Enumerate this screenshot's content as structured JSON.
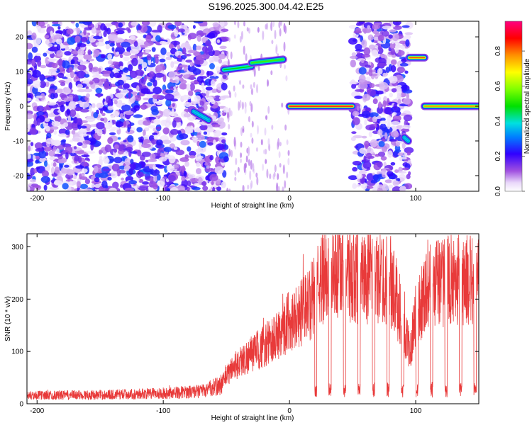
{
  "title": "S196.2025.300.04.42.E25",
  "chart_data": [
    {
      "type": "heatmap",
      "xlabel": "Height of straight line (km)",
      "ylabel": "Frequency (Hz)",
      "colorbar_label": "Normalized spectral amplitude",
      "xlim": [
        -208,
        150
      ],
      "ylim": [
        -24.5,
        24.5
      ],
      "x_ticks": [
        -200,
        -100,
        0,
        100
      ],
      "x_tick_labels": [
        "-200",
        "-100",
        "0",
        "100"
      ],
      "y_ticks": [
        -20,
        -10,
        0,
        10,
        20
      ],
      "y_tick_labels": [
        "-20",
        "-10",
        "0",
        "10",
        "20"
      ],
      "colorbar_ticks": [
        0.0,
        0.2,
        0.4,
        0.6,
        0.8
      ],
      "colorbar_tick_labels": [
        "0.0",
        "0.2",
        "0.4",
        "0.6",
        "0.8"
      ],
      "colorbar_range": [
        0.0,
        0.97
      ],
      "noise_regions": [
        [
          -208,
          -50
        ],
        [
          50,
          95
        ]
      ],
      "tracks": [
        {
          "x_start": -52,
          "x_end": -30,
          "freq_start": 10.5,
          "freq_end": 11.5,
          "amplitude": 0.5
        },
        {
          "x_start": -30,
          "x_end": -5,
          "freq_start": 12.5,
          "freq_end": 13.5,
          "amplitude": 0.55
        },
        {
          "x_start": -76,
          "x_end": -64,
          "freq_start": -1.5,
          "freq_end": -4.0,
          "amplitude": 0.4
        },
        {
          "x_start": 0,
          "x_end": 50,
          "freq_start": 0.0,
          "freq_end": 0.0,
          "amplitude": 0.92
        },
        {
          "x_start": 91,
          "x_end": 94,
          "freq_start": -9.0,
          "freq_end": -10.0,
          "amplitude": 0.4
        },
        {
          "x_start": 95,
          "x_end": 107,
          "freq_start": 14.0,
          "freq_end": 14.0,
          "amplitude": 0.85
        },
        {
          "x_start": 107,
          "x_end": 150,
          "freq_start": 0.0,
          "freq_end": 0.0,
          "amplitude": 0.8
        }
      ]
    },
    {
      "type": "line",
      "xlabel": "Height of straight line (km)",
      "ylabel": "SNR (10 * v/v)",
      "xlim": [
        -208,
        150
      ],
      "ylim": [
        0,
        325
      ],
      "x_ticks": [
        -200,
        -100,
        0,
        100
      ],
      "x_tick_labels": [
        "-200",
        "-100",
        "0",
        "100"
      ],
      "y_ticks": [
        0,
        100,
        200,
        300
      ],
      "y_tick_labels": [
        "0",
        "100",
        "200",
        "300"
      ],
      "series": [
        {
          "name": "SNR",
          "color": "#e83a3a",
          "profile_x": [
            -208,
            -150,
            -100,
            -70,
            -55,
            -45,
            -30,
            -20,
            -10,
            0,
            10,
            20,
            25,
            30,
            50,
            70,
            80,
            85,
            90,
            95,
            100,
            110,
            130,
            150
          ],
          "profile_y": [
            16,
            17,
            20,
            24,
            35,
            70,
            95,
            110,
            130,
            160,
            175,
            205,
            235,
            255,
            245,
            240,
            235,
            200,
            150,
            100,
            170,
            230,
            235,
            235
          ],
          "periodic_dips": {
            "start_x": 20,
            "period_km": 11.5,
            "dip_width_km": 1.6,
            "dip_value": 30
          }
        }
      ]
    }
  ]
}
